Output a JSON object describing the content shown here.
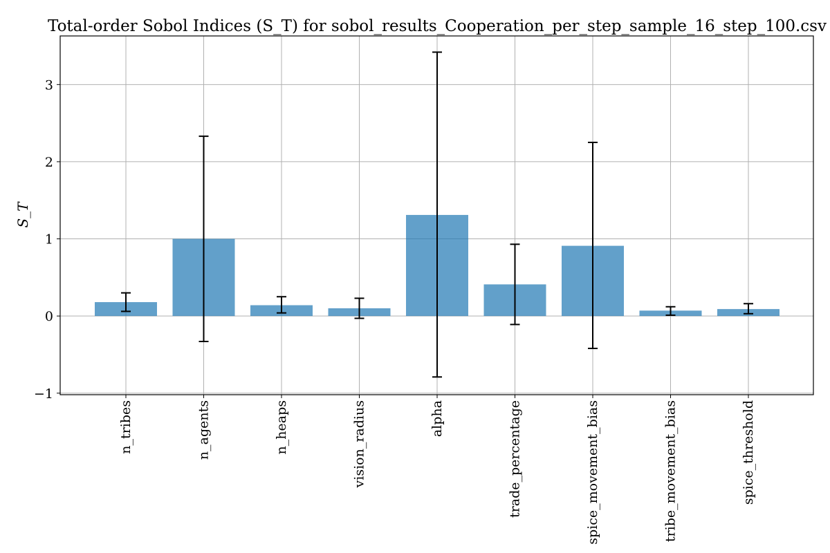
{
  "chart_data": {
    "type": "bar",
    "title": "Total-order Sobol Indices (S_T) for sobol_results_Cooperation_per_step_sample_16_step_100.csv",
    "ylabel": "S_T",
    "xlabel": "",
    "categories": [
      "n_tribes",
      "n_agents",
      "n_heaps",
      "vision_radius",
      "alpha",
      "trade_percentage",
      "spice_movement_bias",
      "tribe_movement_bias",
      "spice_threshold"
    ],
    "values": [
      0.18,
      1.0,
      0.14,
      0.1,
      1.31,
      0.41,
      0.91,
      0.07,
      0.09
    ],
    "err_low": [
      0.06,
      -0.33,
      0.04,
      -0.03,
      -0.79,
      -0.11,
      -0.42,
      0.01,
      0.03
    ],
    "err_high": [
      0.3,
      2.33,
      0.25,
      0.23,
      3.42,
      0.93,
      2.25,
      0.12,
      0.16
    ],
    "ylim": [
      -1.02,
      3.63
    ],
    "yticks": [
      -1,
      0,
      1,
      2,
      3
    ],
    "grid": true,
    "bar_color": "#1f77b4"
  }
}
